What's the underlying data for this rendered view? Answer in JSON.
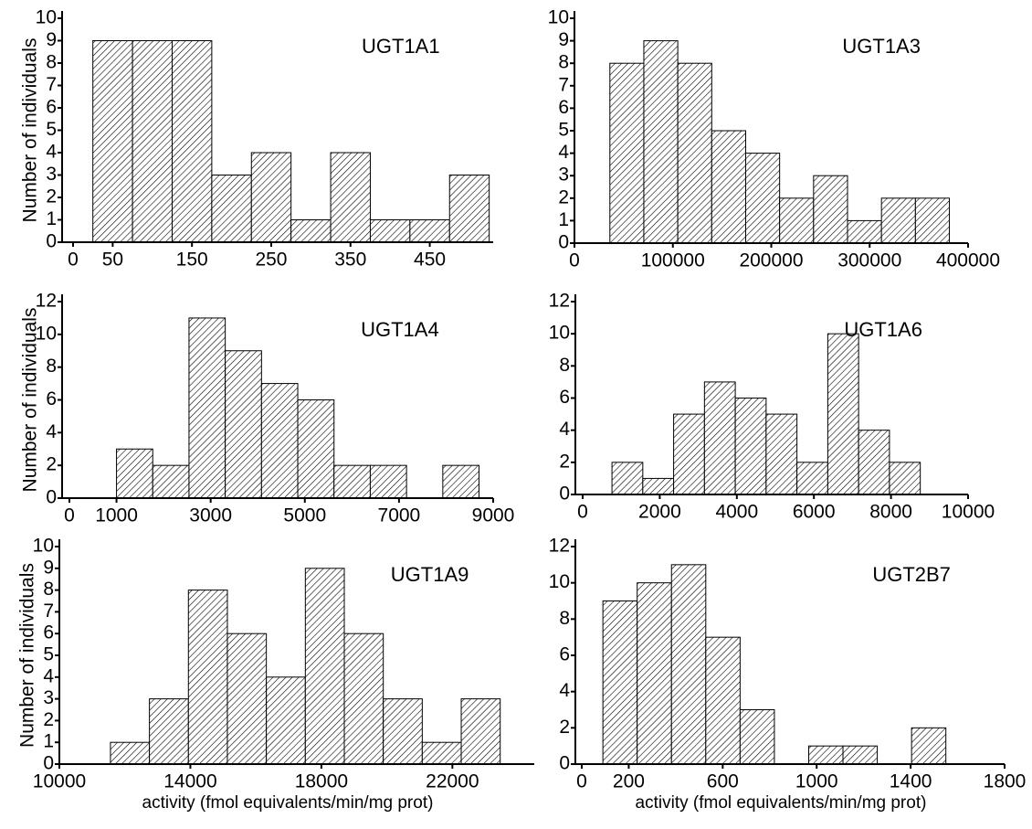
{
  "chart_data": [
    {
      "type": "histogram",
      "title": "UGT1A1",
      "ylabel": "Number of individuals",
      "bins": [
        25,
        75,
        125,
        175,
        225,
        275,
        325,
        375,
        425,
        475,
        525
      ],
      "values": [
        9,
        9,
        9,
        3,
        4,
        1,
        4,
        1,
        1,
        3
      ],
      "color": "#000000",
      "xlim": [
        0,
        530
      ],
      "xticks": [
        0,
        50,
        150,
        250,
        350,
        450
      ],
      "ylim": [
        0,
        10
      ],
      "yticks": [
        0,
        1,
        2,
        3,
        4,
        5,
        6,
        7,
        8,
        9,
        10
      ]
    },
    {
      "type": "histogram",
      "title": "UGT1A3",
      "bins": [
        36000,
        70500,
        105000,
        139500,
        174000,
        208500,
        243000,
        277500,
        312000,
        346500,
        381000
      ],
      "values": [
        8,
        9,
        8,
        5,
        4,
        2,
        3,
        1,
        2,
        2
      ],
      "color": "#000000",
      "xlim": [
        0,
        400000
      ],
      "xticks": [
        0,
        100000,
        200000,
        300000,
        400000
      ],
      "ylim": [
        0,
        10
      ],
      "yticks": [
        0,
        1,
        2,
        3,
        4,
        5,
        6,
        7,
        8,
        9,
        10
      ]
    },
    {
      "type": "histogram",
      "title": "UGT1A4",
      "ylabel": "Number of individuals",
      "bins": [
        1000,
        1770,
        2540,
        3310,
        4080,
        4850,
        5620,
        6390,
        7160,
        7930,
        8700
      ],
      "values": [
        3,
        2,
        11,
        9,
        7,
        6,
        2,
        2,
        0,
        2
      ],
      "color": "#000000",
      "xlim": [
        0,
        9000
      ],
      "xticks": [
        0,
        1000,
        3000,
        5000,
        7000,
        9000
      ],
      "ylim": [
        0,
        12
      ],
      "yticks": [
        0,
        2,
        4,
        6,
        8,
        10,
        12
      ]
    },
    {
      "type": "histogram",
      "title": "UGT1A6",
      "bins": [
        760,
        1560,
        2360,
        3160,
        3960,
        4760,
        5560,
        6360,
        7160,
        7960,
        8760
      ],
      "values": [
        2,
        1,
        5,
        7,
        6,
        5,
        2,
        10,
        4,
        2
      ],
      "color": "#000000",
      "xlim": [
        0,
        10000
      ],
      "xticks": [
        0,
        2000,
        4000,
        6000,
        8000,
        10000
      ],
      "ylim": [
        0,
        12
      ],
      "yticks": [
        0,
        2,
        4,
        6,
        8,
        10,
        12
      ]
    },
    {
      "type": "histogram",
      "title": "UGT1A9",
      "ylabel": "Number of individuals",
      "xlabel": "activity (fmol equivalents/min/mg prot)",
      "bins": [
        11560,
        12750,
        13940,
        15130,
        16320,
        17510,
        18700,
        19890,
        21080,
        22270,
        23460
      ],
      "values": [
        1,
        3,
        8,
        6,
        4,
        9,
        6,
        3,
        1,
        3
      ],
      "color": "#000000",
      "xlim": [
        10000,
        24500
      ],
      "xticks": [
        10000,
        14000,
        18000,
        22000
      ],
      "ylim": [
        0,
        10
      ],
      "yticks": [
        0,
        1,
        2,
        3,
        4,
        5,
        6,
        7,
        8,
        9,
        10
      ]
    },
    {
      "type": "histogram",
      "title": "UGT2B7",
      "xlabel": "activity (fmol equivalents/min/mg prot)",
      "bins": [
        90,
        236,
        382,
        528,
        674,
        820,
        966,
        1112,
        1258,
        1404,
        1550
      ],
      "values": [
        9,
        10,
        11,
        7,
        3,
        0,
        1,
        1,
        0,
        2
      ],
      "color": "#000000",
      "xlim": [
        0,
        1800
      ],
      "xticks": [
        0,
        200,
        600,
        1000,
        1400,
        1800
      ],
      "ylim": [
        0,
        12
      ],
      "yticks": [
        0,
        2,
        4,
        6,
        8,
        10,
        12
      ]
    }
  ]
}
